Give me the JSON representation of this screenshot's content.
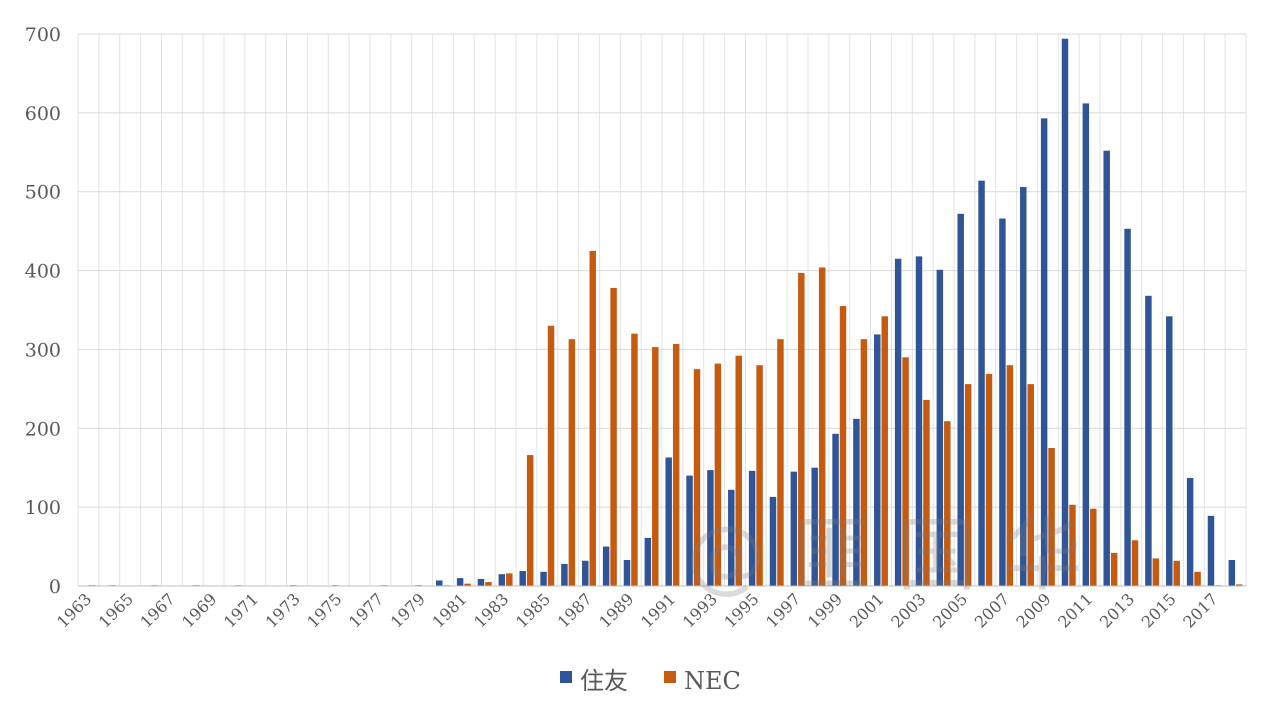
{
  "chart_data": {
    "type": "bar",
    "categories": [
      "1963",
      "1964",
      "1965",
      "1966",
      "1967",
      "1968",
      "1969",
      "1970",
      "1971",
      "1972",
      "1973",
      "1974",
      "1975",
      "1976",
      "1977",
      "1978",
      "1979",
      "1980",
      "1981",
      "1982",
      "1983",
      "1984",
      "1985",
      "1986",
      "1987",
      "1988",
      "1989",
      "1990",
      "1991",
      "1992",
      "1993",
      "1994",
      "1995",
      "1996",
      "1997",
      "1998",
      "1999",
      "2000",
      "2001",
      "2002",
      "2003",
      "2004",
      "2005",
      "2006",
      "2007",
      "2008",
      "2009",
      "2010",
      "2011",
      "2012",
      "2013",
      "2014",
      "2015",
      "2016",
      "2017",
      "2018"
    ],
    "series": [
      {
        "name": "住友",
        "color": "#2f5597",
        "values": [
          0,
          0,
          0,
          0,
          0,
          0,
          0,
          0,
          0,
          0,
          1,
          0,
          1,
          0,
          0,
          0,
          1,
          7,
          10,
          9,
          15,
          19,
          18,
          28,
          32,
          50,
          33,
          61,
          163,
          140,
          147,
          122,
          146,
          113,
          145,
          150,
          193,
          212,
          319,
          415,
          418,
          401,
          472,
          514,
          466,
          506,
          593,
          694,
          612,
          552,
          453,
          368,
          342,
          137,
          89,
          33
        ]
      },
      {
        "name": "NEC",
        "color": "#c55a11",
        "values": [
          1,
          1,
          0,
          1,
          0,
          1,
          0,
          1,
          0,
          0,
          0,
          0,
          0,
          0,
          1,
          0,
          0,
          1,
          3,
          5,
          16,
          166,
          330,
          313,
          425,
          378,
          320,
          303,
          307,
          275,
          282,
          292,
          280,
          313,
          397,
          404,
          355,
          313,
          342,
          290,
          236,
          209,
          256,
          269,
          280,
          256,
          175,
          103,
          98,
          42,
          58,
          35,
          32,
          18,
          1,
          2
        ]
      }
    ],
    "x_tick_labels": [
      "1963",
      "1965",
      "1967",
      "1969",
      "1971",
      "1973",
      "1975",
      "1977",
      "1979",
      "1981",
      "1983",
      "1985",
      "1987",
      "1989",
      "1991",
      "1993",
      "1995",
      "1997",
      "1999",
      "2001",
      "2003",
      "2005",
      "2007",
      "2009",
      "2011",
      "2013",
      "2015",
      "2017"
    ],
    "y_ticks": [
      0,
      100,
      200,
      300,
      400,
      500,
      600,
      700
    ],
    "ylim": [
      0,
      700
    ],
    "title": "",
    "xlabel": "",
    "ylabel": "",
    "grid": true,
    "legend_position": "bottom"
  },
  "watermark": {
    "text": "@ 匪 国 华"
  }
}
